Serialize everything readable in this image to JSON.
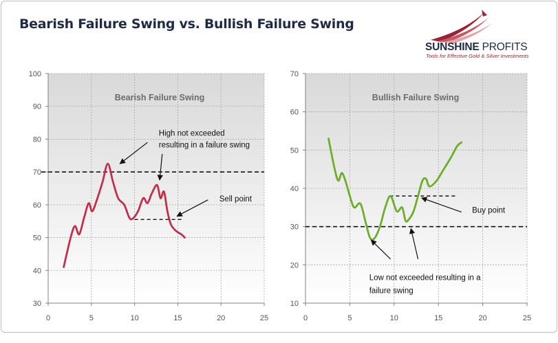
{
  "page_title": "Bearish Failure Swing vs. Bullish Failure Swing",
  "logo": {
    "name_bold": "SUNSHINE",
    "name_light": "PROFITS",
    "tagline": "Tools for Effective Gold & Silver Investments",
    "accent_color": "#9b2335"
  },
  "chart_data": [
    {
      "type": "line",
      "title": "Bearish Failure Swing",
      "xlim": [
        0,
        25
      ],
      "ylim": [
        30,
        100
      ],
      "x_ticks": [
        0,
        5,
        10,
        15,
        20,
        25
      ],
      "y_ticks": [
        30,
        40,
        50,
        60,
        70,
        80,
        90,
        100
      ],
      "grid": true,
      "line_color": "#c0304a",
      "series": [
        {
          "x": [
            1.8,
            2.6,
            3.1,
            3.6,
            4.2,
            4.7,
            5.1,
            5.7,
            6.3,
            6.9,
            7.5,
            8.1,
            8.8,
            9.4,
            9.8,
            10.4,
            11.0,
            11.5,
            12.0,
            12.6,
            13.0,
            13.4,
            13.8,
            14.2,
            14.8,
            15.4,
            15.8
          ],
          "y": [
            41,
            50,
            53.5,
            51,
            56.5,
            60.5,
            58,
            62,
            67,
            72.5,
            67,
            62,
            60,
            56,
            55.8,
            58,
            62,
            60.5,
            63.5,
            66,
            62,
            64,
            58,
            54,
            52,
            51,
            50
          ]
        }
      ],
      "reference_line": {
        "y": 70,
        "style": "dashed"
      },
      "short_dash": {
        "x": [
          10,
          15.5
        ],
        "y": 55.5
      },
      "annotations": [
        {
          "text": "High not exceeded",
          "x": 12.8,
          "y": 81
        },
        {
          "text": "resulting in a failure swing",
          "x": 12.8,
          "y": 77.5
        },
        {
          "text": "Sell point",
          "x": 19.8,
          "y": 61
        }
      ],
      "arrows": [
        {
          "from": [
            11.5,
            79
          ],
          "to": [
            8.3,
            72.5
          ]
        },
        {
          "from": [
            13.2,
            75.5
          ],
          "to": [
            12.9,
            67.5
          ]
        },
        {
          "from": [
            18.5,
            61.5
          ],
          "to": [
            14.9,
            56.5
          ]
        }
      ]
    },
    {
      "type": "line",
      "title": "Bullish Failure Swing",
      "xlim": [
        0,
        25
      ],
      "ylim": [
        10,
        70
      ],
      "x_ticks": [
        0,
        5,
        10,
        15,
        20,
        25
      ],
      "y_ticks": [
        10,
        20,
        30,
        40,
        50,
        60,
        70
      ],
      "grid": true,
      "line_color": "#6cae2b",
      "series": [
        {
          "x": [
            2.6,
            3.3,
            3.7,
            4.1,
            4.5,
            5.0,
            5.5,
            6.2,
            6.8,
            7.3,
            7.8,
            8.4,
            9.0,
            9.6,
            10.3,
            10.9,
            11.3,
            11.7,
            12.2,
            12.7,
            13.2,
            13.6,
            14.0,
            14.8,
            15.6,
            16.4,
            17.1,
            17.6
          ],
          "y": [
            53,
            45,
            42,
            44,
            42,
            38,
            35,
            36,
            31,
            27,
            27,
            30,
            35,
            38,
            34,
            35,
            31.5,
            32,
            34,
            38,
            42,
            42.5,
            40.5,
            42,
            45,
            48,
            51,
            52
          ]
        }
      ],
      "reference_line": {
        "x": [
          0,
          25
        ],
        "y": [
          30,
          30
        ],
        "style": "dashed"
      },
      "short_dash": {
        "x": [
          9.5,
          17
        ],
        "y": 38
      },
      "annotations": [
        {
          "text": "Buy point",
          "x": 18.8,
          "y": 33.6
        },
        {
          "text": "Low not exceeded resulting in a",
          "x": 7.2,
          "y": 16
        },
        {
          "text": "failure swing",
          "x": 7.2,
          "y": 12.6
        }
      ],
      "arrows": [
        {
          "from": [
            17.6,
            33.8
          ],
          "to": [
            13.1,
            37.5
          ]
        },
        {
          "from": [
            9.6,
            21.5
          ],
          "to": [
            7.4,
            26.5
          ]
        },
        {
          "from": [
            12.7,
            21.5
          ],
          "to": [
            11.9,
            29.5
          ]
        }
      ]
    }
  ]
}
